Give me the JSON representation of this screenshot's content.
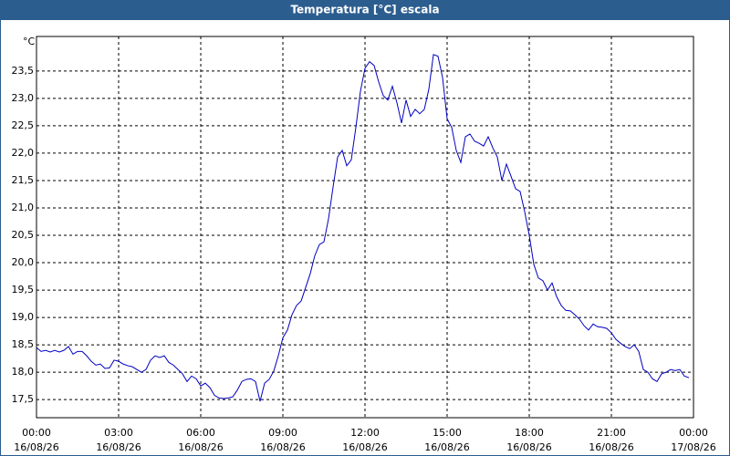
{
  "chart_data": {
    "type": "line",
    "title": "Temperatura [°C] escala",
    "y_unit": "°C",
    "color": "#0000c0",
    "grid": true,
    "x": [
      0,
      10,
      20,
      30,
      40,
      50,
      60,
      70,
      80,
      90,
      100,
      110,
      120,
      130,
      140,
      150,
      160,
      170,
      180,
      190,
      200,
      210,
      220,
      230,
      240,
      250,
      260,
      270,
      280,
      290,
      300,
      310,
      320,
      330,
      340,
      350,
      360,
      370,
      380,
      390,
      400,
      410,
      420,
      430,
      440,
      450,
      460,
      470,
      480,
      490,
      500,
      510,
      520,
      530,
      540,
      550,
      560,
      570,
      580,
      590,
      600,
      610,
      620,
      630,
      640,
      650,
      660,
      670,
      680,
      690,
      700,
      710,
      720,
      730,
      740,
      750,
      760,
      770,
      780,
      790,
      800,
      810,
      820,
      830,
      840,
      850,
      860,
      870,
      880,
      890,
      900,
      910,
      920,
      930,
      940,
      950,
      960,
      970,
      980,
      990,
      1000,
      1010,
      1020,
      1030,
      1040,
      1050,
      1060,
      1070,
      1080,
      1090,
      1100,
      1110,
      1120,
      1130,
      1140,
      1150,
      1160,
      1170,
      1180,
      1190,
      1200,
      1210,
      1220,
      1230,
      1240,
      1250,
      1260,
      1270,
      1280,
      1290,
      1300,
      1310,
      1320,
      1330,
      1340,
      1350,
      1360,
      1370,
      1380,
      1390,
      1400,
      1410,
      1420,
      1430
    ],
    "values": [
      18.45,
      18.38,
      18.4,
      18.37,
      18.4,
      18.37,
      18.4,
      18.47,
      18.33,
      18.38,
      18.38,
      18.3,
      18.2,
      18.13,
      18.15,
      18.07,
      18.08,
      18.22,
      18.2,
      18.15,
      18.12,
      18.1,
      18.05,
      18.0,
      18.05,
      18.22,
      18.3,
      18.27,
      18.3,
      18.18,
      18.13,
      18.05,
      17.97,
      17.83,
      17.93,
      17.88,
      17.75,
      17.8,
      17.72,
      17.58,
      17.53,
      17.52,
      17.53,
      17.55,
      17.67,
      17.83,
      17.87,
      17.88,
      17.83,
      17.47,
      17.8,
      17.87,
      18.02,
      18.3,
      18.63,
      18.77,
      19.05,
      19.22,
      19.3,
      19.55,
      19.8,
      20.13,
      20.33,
      20.38,
      20.8,
      21.38,
      21.93,
      22.05,
      21.77,
      21.88,
      22.47,
      23.13,
      23.55,
      23.67,
      23.6,
      23.3,
      23.05,
      22.97,
      23.22,
      22.92,
      22.55,
      22.97,
      22.67,
      22.8,
      22.72,
      22.8,
      23.17,
      23.8,
      23.77,
      23.38,
      22.63,
      22.47,
      22.05,
      21.83,
      22.3,
      22.35,
      22.22,
      22.18,
      22.13,
      22.3,
      22.1,
      21.93,
      21.5,
      21.8,
      21.58,
      21.35,
      21.3,
      20.93,
      20.5,
      19.97,
      19.72,
      19.67,
      19.5,
      19.63,
      19.38,
      19.22,
      19.13,
      19.12,
      19.05,
      18.97,
      18.85,
      18.77,
      18.88,
      18.83,
      18.82,
      18.8,
      18.72,
      18.6,
      18.53,
      18.47,
      18.43,
      18.5,
      18.38,
      18.05,
      18.0,
      17.88,
      17.83,
      17.97,
      18.0,
      18.05,
      18.03,
      18.05,
      17.93,
      17.9
    ],
    "xlim": [
      0,
      1440
    ],
    "xticks": [
      {
        "value": 0,
        "label": "00:00",
        "date": "16/08/26"
      },
      {
        "value": 180,
        "label": "03:00",
        "date": "16/08/26"
      },
      {
        "value": 360,
        "label": "06:00",
        "date": "16/08/26"
      },
      {
        "value": 540,
        "label": "09:00",
        "date": "16/08/26"
      },
      {
        "value": 720,
        "label": "12:00",
        "date": "16/08/26"
      },
      {
        "value": 900,
        "label": "15:00",
        "date": "16/08/26"
      },
      {
        "value": 1080,
        "label": "18:00",
        "date": "16/08/26"
      },
      {
        "value": 1260,
        "label": "21:00",
        "date": "16/08/26"
      },
      {
        "value": 1440,
        "label": "00:00",
        "date": "17/08/26"
      }
    ],
    "ylim": [
      17.17,
      24.13
    ],
    "yticks": [
      {
        "value": 17.5,
        "label": "17,5"
      },
      {
        "value": 18.0,
        "label": "18,0"
      },
      {
        "value": 18.5,
        "label": "18,5"
      },
      {
        "value": 19.0,
        "label": "19,0"
      },
      {
        "value": 19.5,
        "label": "19,5"
      },
      {
        "value": 20.0,
        "label": "20,0"
      },
      {
        "value": 20.5,
        "label": "20,5"
      },
      {
        "value": 21.0,
        "label": "21,0"
      },
      {
        "value": 21.5,
        "label": "21,5"
      },
      {
        "value": 22.0,
        "label": "22,0"
      },
      {
        "value": 22.5,
        "label": "22,5"
      },
      {
        "value": 23.0,
        "label": "23,0"
      },
      {
        "value": 23.5,
        "label": "23,5"
      }
    ]
  }
}
